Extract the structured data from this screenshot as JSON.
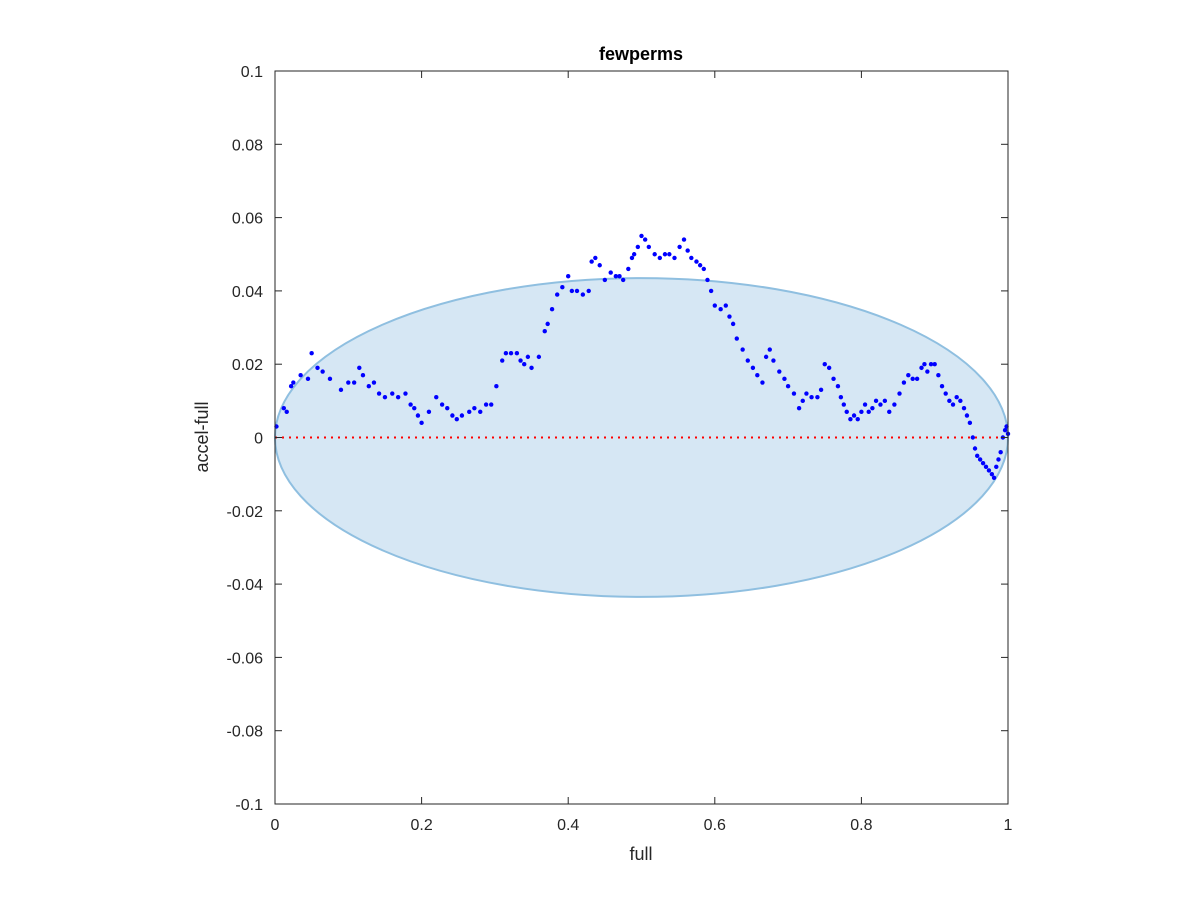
{
  "chart_data": {
    "type": "scatter",
    "title": "fewperms",
    "xlabel": "full",
    "ylabel": "accel-full",
    "xlim": [
      0,
      1
    ],
    "ylim": [
      -0.1,
      0.1
    ],
    "xticks": [
      0,
      0.2,
      0.4,
      0.6,
      0.8,
      1
    ],
    "xtick_labels": [
      "0",
      "0.2",
      "0.4",
      "0.6",
      "0.8",
      "1"
    ],
    "yticks": [
      -0.1,
      -0.08,
      -0.06,
      -0.04,
      -0.02,
      0,
      0.02,
      0.04,
      0.06,
      0.08,
      0.1
    ],
    "ytick_labels": [
      "-0.1",
      "-0.08",
      "-0.06",
      "-0.04",
      "-0.02",
      "0",
      "0.02",
      "0.04",
      "0.06",
      "0.08",
      "0.1"
    ],
    "grid": false,
    "reference_line": {
      "y": 0,
      "style": "dotted",
      "color": "#ff0000"
    },
    "ellipse": {
      "center_x": 0.5,
      "center_y": 0.0,
      "radius_x": 0.5,
      "radius_y": 0.0435,
      "fill": "#d6e7f4",
      "stroke": "#8fbfe0"
    },
    "series": [
      {
        "color": "#0000ff",
        "marker": "dot",
        "points": [
          [
            0.002,
            0.003
          ],
          [
            0.012,
            0.008
          ],
          [
            0.016,
            0.007
          ],
          [
            0.022,
            0.014
          ],
          [
            0.025,
            0.015
          ],
          [
            0.035,
            0.017
          ],
          [
            0.045,
            0.016
          ],
          [
            0.05,
            0.023
          ],
          [
            0.058,
            0.019
          ],
          [
            0.065,
            0.018
          ],
          [
            0.075,
            0.016
          ],
          [
            0.09,
            0.013
          ],
          [
            0.1,
            0.015
          ],
          [
            0.108,
            0.015
          ],
          [
            0.115,
            0.019
          ],
          [
            0.12,
            0.017
          ],
          [
            0.128,
            0.014
          ],
          [
            0.135,
            0.015
          ],
          [
            0.142,
            0.012
          ],
          [
            0.15,
            0.011
          ],
          [
            0.16,
            0.012
          ],
          [
            0.168,
            0.011
          ],
          [
            0.178,
            0.012
          ],
          [
            0.185,
            0.009
          ],
          [
            0.19,
            0.008
          ],
          [
            0.195,
            0.006
          ],
          [
            0.2,
            0.004
          ],
          [
            0.21,
            0.007
          ],
          [
            0.22,
            0.011
          ],
          [
            0.228,
            0.009
          ],
          [
            0.235,
            0.008
          ],
          [
            0.242,
            0.006
          ],
          [
            0.248,
            0.005
          ],
          [
            0.255,
            0.006
          ],
          [
            0.265,
            0.007
          ],
          [
            0.272,
            0.008
          ],
          [
            0.28,
            0.007
          ],
          [
            0.288,
            0.009
          ],
          [
            0.295,
            0.009
          ],
          [
            0.302,
            0.014
          ],
          [
            0.31,
            0.021
          ],
          [
            0.315,
            0.023
          ],
          [
            0.322,
            0.023
          ],
          [
            0.33,
            0.023
          ],
          [
            0.335,
            0.021
          ],
          [
            0.34,
            0.02
          ],
          [
            0.345,
            0.022
          ],
          [
            0.35,
            0.019
          ],
          [
            0.36,
            0.022
          ],
          [
            0.368,
            0.029
          ],
          [
            0.372,
            0.031
          ],
          [
            0.378,
            0.035
          ],
          [
            0.385,
            0.039
          ],
          [
            0.392,
            0.041
          ],
          [
            0.4,
            0.044
          ],
          [
            0.405,
            0.04
          ],
          [
            0.412,
            0.04
          ],
          [
            0.42,
            0.039
          ],
          [
            0.428,
            0.04
          ],
          [
            0.432,
            0.048
          ],
          [
            0.437,
            0.049
          ],
          [
            0.443,
            0.047
          ],
          [
            0.45,
            0.043
          ],
          [
            0.458,
            0.045
          ],
          [
            0.465,
            0.044
          ],
          [
            0.47,
            0.044
          ],
          [
            0.475,
            0.043
          ],
          [
            0.482,
            0.046
          ],
          [
            0.487,
            0.049
          ],
          [
            0.49,
            0.05
          ],
          [
            0.495,
            0.052
          ],
          [
            0.5,
            0.055
          ],
          [
            0.505,
            0.054
          ],
          [
            0.51,
            0.052
          ],
          [
            0.518,
            0.05
          ],
          [
            0.525,
            0.049
          ],
          [
            0.532,
            0.05
          ],
          [
            0.538,
            0.05
          ],
          [
            0.545,
            0.049
          ],
          [
            0.552,
            0.052
          ],
          [
            0.558,
            0.054
          ],
          [
            0.563,
            0.051
          ],
          [
            0.568,
            0.049
          ],
          [
            0.575,
            0.048
          ],
          [
            0.58,
            0.047
          ],
          [
            0.585,
            0.046
          ],
          [
            0.59,
            0.043
          ],
          [
            0.595,
            0.04
          ],
          [
            0.6,
            0.036
          ],
          [
            0.608,
            0.035
          ],
          [
            0.615,
            0.036
          ],
          [
            0.62,
            0.033
          ],
          [
            0.625,
            0.031
          ],
          [
            0.63,
            0.027
          ],
          [
            0.638,
            0.024
          ],
          [
            0.645,
            0.021
          ],
          [
            0.652,
            0.019
          ],
          [
            0.658,
            0.017
          ],
          [
            0.665,
            0.015
          ],
          [
            0.67,
            0.022
          ],
          [
            0.675,
            0.024
          ],
          [
            0.68,
            0.021
          ],
          [
            0.688,
            0.018
          ],
          [
            0.695,
            0.016
          ],
          [
            0.7,
            0.014
          ],
          [
            0.708,
            0.012
          ],
          [
            0.715,
            0.008
          ],
          [
            0.72,
            0.01
          ],
          [
            0.725,
            0.012
          ],
          [
            0.732,
            0.011
          ],
          [
            0.74,
            0.011
          ],
          [
            0.745,
            0.013
          ],
          [
            0.75,
            0.02
          ],
          [
            0.756,
            0.019
          ],
          [
            0.762,
            0.016
          ],
          [
            0.768,
            0.014
          ],
          [
            0.772,
            0.011
          ],
          [
            0.776,
            0.009
          ],
          [
            0.78,
            0.007
          ],
          [
            0.785,
            0.005
          ],
          [
            0.79,
            0.006
          ],
          [
            0.795,
            0.005
          ],
          [
            0.8,
            0.007
          ],
          [
            0.805,
            0.009
          ],
          [
            0.81,
            0.007
          ],
          [
            0.815,
            0.008
          ],
          [
            0.82,
            0.01
          ],
          [
            0.826,
            0.009
          ],
          [
            0.832,
            0.01
          ],
          [
            0.838,
            0.007
          ],
          [
            0.845,
            0.009
          ],
          [
            0.852,
            0.012
          ],
          [
            0.858,
            0.015
          ],
          [
            0.864,
            0.017
          ],
          [
            0.87,
            0.016
          ],
          [
            0.876,
            0.016
          ],
          [
            0.882,
            0.019
          ],
          [
            0.886,
            0.02
          ],
          [
            0.89,
            0.018
          ],
          [
            0.895,
            0.02
          ],
          [
            0.9,
            0.02
          ],
          [
            0.905,
            0.017
          ],
          [
            0.91,
            0.014
          ],
          [
            0.915,
            0.012
          ],
          [
            0.92,
            0.01
          ],
          [
            0.925,
            0.009
          ],
          [
            0.93,
            0.011
          ],
          [
            0.935,
            0.01
          ],
          [
            0.94,
            0.008
          ],
          [
            0.944,
            0.006
          ],
          [
            0.948,
            0.004
          ],
          [
            0.952,
            0.0
          ],
          [
            0.955,
            -0.003
          ],
          [
            0.958,
            -0.005
          ],
          [
            0.962,
            -0.006
          ],
          [
            0.966,
            -0.007
          ],
          [
            0.97,
            -0.008
          ],
          [
            0.974,
            -0.009
          ],
          [
            0.978,
            -0.01
          ],
          [
            0.981,
            -0.011
          ],
          [
            0.984,
            -0.008
          ],
          [
            0.987,
            -0.006
          ],
          [
            0.99,
            -0.004
          ],
          [
            0.993,
            0.0
          ],
          [
            0.996,
            0.002
          ],
          [
            0.998,
            0.003
          ],
          [
            1.0,
            0.001
          ]
        ]
      }
    ]
  }
}
